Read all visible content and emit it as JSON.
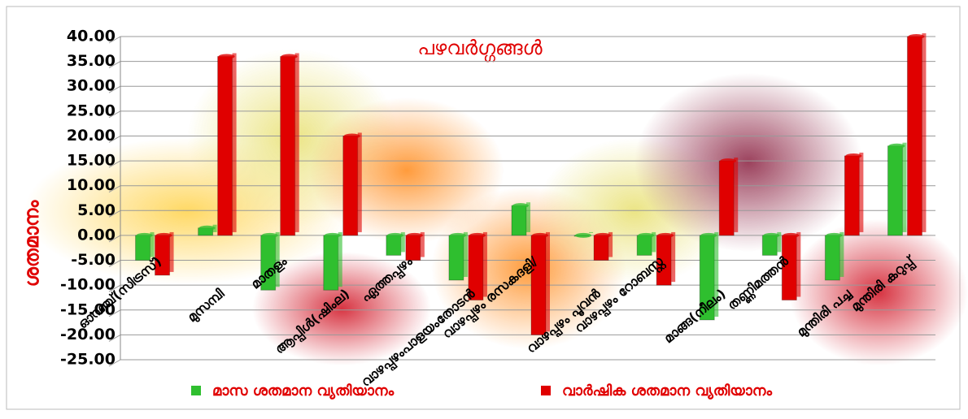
{
  "chart_data": {
    "type": "bar",
    "title": "പഴവർഗ്ഗങ്ങൾ",
    "y_label": "ശതമാനം",
    "categories": [
      "ഓറഞ്ച്(സിട്രസ്)",
      "മുസമ്പി",
      "മാതളം",
      "ആപ്പിൾ(ഷിംല)",
      "ഏത്തപ്പഴം",
      "വാഴപ്പഴംപാളയംതോടൻ",
      "വാഴപ്പഴം രസകദളി/",
      "വാഴപ്പഴം പൂവൻ",
      "വാഴപ്പഴം റോബസ്റ്റ",
      "മാങ്ങ(നീലം)",
      "തണ്ണിമത്തൻ",
      "മുന്തിരി പച്ച",
      "മുന്തിരി കറുപ്പ്"
    ],
    "series": [
      {
        "name": "മാസ ശതമാന വ്യതിയാനം",
        "color": "#2fbf2f",
        "values": [
          -5,
          1.5,
          -11,
          -11,
          -4,
          -9,
          6,
          0,
          -4,
          -17,
          -4,
          -9,
          18
        ]
      },
      {
        "name": "വാർഷിക ശതമാന വ്യതിയാനം",
        "color": "#e00000",
        "values": [
          -8,
          36,
          36,
          20,
          -5,
          -13,
          -20,
          -5,
          -10,
          15,
          -13,
          16,
          40
        ]
      }
    ],
    "ylim": [
      -25,
      40
    ],
    "yticks": [
      {
        "value": -25,
        "label": "-25.00"
      },
      {
        "value": -20,
        "label": "-20.00"
      },
      {
        "value": -15,
        "label": "-15.00"
      },
      {
        "value": -10,
        "label": "-10.00"
      },
      {
        "value": -5,
        "label": "-5.00"
      },
      {
        "value": 0,
        "label": "0.00"
      },
      {
        "value": 5,
        "label": "5.00"
      },
      {
        "value": 10,
        "label": "10.00"
      },
      {
        "value": 15,
        "label": "15.00"
      },
      {
        "value": 20,
        "label": "20.00"
      },
      {
        "value": 25,
        "label": "25.00"
      },
      {
        "value": 30,
        "label": "30.00"
      },
      {
        "value": 35,
        "label": "35.00"
      },
      {
        "value": 40,
        "label": "40.00"
      }
    ],
    "grid": true,
    "legend": "bottom"
  }
}
